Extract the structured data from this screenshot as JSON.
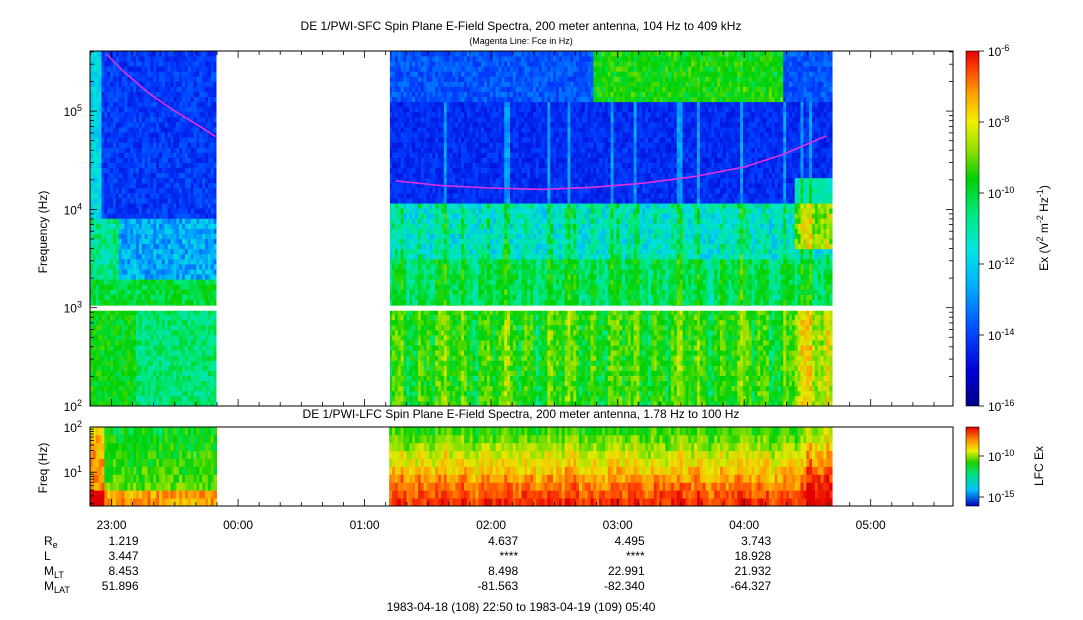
{
  "chart_data": [
    {
      "type": "heatmap",
      "title": "DE 1/PWI-SFC  Spin Plane E-Field Spectra, 200 meter antenna, 104 Hz to 409 kHz",
      "subtitle": "(Magenta Line: Fce in Hz)",
      "ylabel": "Frequency (Hz)",
      "yscale": "log",
      "ylim": [
        100,
        409000
      ],
      "y_ticks": [
        {
          "value": 100,
          "mant": "10",
          "exp": "2"
        },
        {
          "value": 1000,
          "mant": "10",
          "exp": "3"
        },
        {
          "value": 10000,
          "mant": "10",
          "exp": "4"
        },
        {
          "value": 100000,
          "mant": "10",
          "exp": "5"
        }
      ],
      "colorbar": {
        "label": "Ex (V² m⁻² Hz⁻¹)",
        "scale": "log",
        "range": [
          1e-16,
          1e-06
        ],
        "ticks": [
          {
            "value": 1e-06,
            "mant": "10",
            "exp": "-6"
          },
          {
            "value": 1e-08,
            "mant": "10",
            "exp": "-8"
          },
          {
            "value": 1e-10,
            "mant": "10",
            "exp": "-10"
          },
          {
            "value": 1e-12,
            "mant": "10",
            "exp": "-12"
          },
          {
            "value": 1e-14,
            "mant": "10",
            "exp": "-14"
          },
          {
            "value": 1e-16,
            "mant": "10",
            "exp": "-16"
          }
        ]
      },
      "data_gaps_hours": [
        [
          23.83,
          25.2
        ],
        [
          25.2,
          26.2
        ]
      ],
      "data_coverage_hours": [
        [
          22.83,
          23.83
        ],
        [
          25.2,
          28.7
        ]
      ],
      "series": [
        {
          "name": "Fce",
          "color": "#e030e0",
          "segments": [
            {
              "x": [
                22.96,
                23.1,
                23.3,
                23.5,
                23.7,
                23.82
              ],
              "y": [
                380000,
                250000,
                150000,
                100000,
                70000,
                55000
              ]
            },
            {
              "x": [
                25.25,
                25.6,
                26.0,
                26.4,
                26.8,
                27.2,
                27.6,
                28.0,
                28.3,
                28.65
              ],
              "y": [
                19500,
                17500,
                16500,
                16000,
                16800,
                18500,
                21500,
                27000,
                36000,
                56000
              ]
            }
          ]
        }
      ]
    },
    {
      "type": "heatmap",
      "title": "DE 1/PWI-LFC  Spin Plane E-Field Spectra, 200 meter antenna, 1.78 Hz to 100 Hz",
      "ylabel": "Freq (Hz)",
      "yscale": "log",
      "ylim": [
        1.78,
        100
      ],
      "y_ticks": [
        {
          "value": 10,
          "mant": "10",
          "exp": "1"
        },
        {
          "value": 100,
          "mant": "10",
          "exp": "2"
        }
      ],
      "colorbar": {
        "label": "LFC Ex",
        "scale": "log",
        "ticks": [
          {
            "value": 1e-10,
            "mant": "10",
            "exp": "-10"
          },
          {
            "value": 1e-15,
            "mant": "10",
            "exp": "-15"
          }
        ]
      }
    }
  ],
  "x_axis": {
    "range_hours": [
      22.83,
      29.65
    ],
    "ticks": [
      {
        "hours": 23,
        "label": "23:00"
      },
      {
        "hours": 24,
        "label": "00:00"
      },
      {
        "hours": 25,
        "label": "01:00"
      },
      {
        "hours": 26,
        "label": "02:00"
      },
      {
        "hours": 27,
        "label": "03:00"
      },
      {
        "hours": 28,
        "label": "04:00"
      },
      {
        "hours": 29,
        "label": "05:00"
      }
    ]
  },
  "ephemeris": {
    "rows": [
      {
        "main": "R",
        "sub": "e",
        "values": [
          {
            "hours": 23,
            "v": "1.219"
          },
          {
            "hours": 26,
            "v": "4.637"
          },
          {
            "hours": 27,
            "v": "4.495"
          },
          {
            "hours": 28,
            "v": "3.743"
          }
        ]
      },
      {
        "main": "L",
        "sub": "",
        "values": [
          {
            "hours": 23,
            "v": "3.447"
          },
          {
            "hours": 26,
            "v": "****"
          },
          {
            "hours": 27,
            "v": "****"
          },
          {
            "hours": 28,
            "v": "18.928"
          }
        ]
      },
      {
        "main": "M",
        "sub": "LT",
        "values": [
          {
            "hours": 23,
            "v": "8.453"
          },
          {
            "hours": 26,
            "v": "8.498"
          },
          {
            "hours": 27,
            "v": "22.991"
          },
          {
            "hours": 28,
            "v": "21.932"
          }
        ]
      },
      {
        "main": "M",
        "sub": "LAT",
        "values": [
          {
            "hours": 23,
            "v": "51.896"
          },
          {
            "hours": 26,
            "v": "-81.563"
          },
          {
            "hours": 27,
            "v": "-82.340"
          },
          {
            "hours": 28,
            "v": "-64.327"
          }
        ]
      }
    ]
  },
  "time_range_label": "1983-04-18 (108) 22:50 to 1983-04-19 (109) 05:40",
  "colors": {
    "magenta_line": "#e030e0",
    "colormap": [
      "#00008c",
      "#0000d0",
      "#0040ff",
      "#00a0ff",
      "#00e0e0",
      "#00e880",
      "#00d000",
      "#80e000",
      "#e8e800",
      "#ffa000",
      "#ff4000",
      "#e00000"
    ]
  }
}
